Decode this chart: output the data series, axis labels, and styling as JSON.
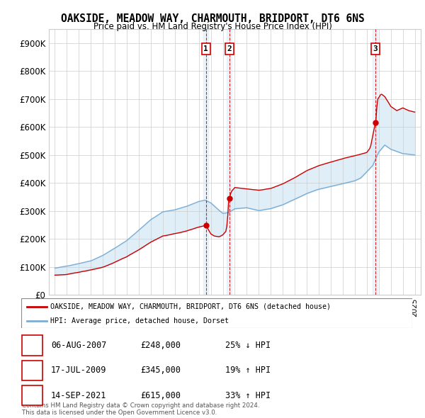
{
  "title": "OAKSIDE, MEADOW WAY, CHARMOUTH, BRIDPORT, DT6 6NS",
  "subtitle": "Price paid vs. HM Land Registry's House Price Index (HPI)",
  "legend_label_red": "OAKSIDE, MEADOW WAY, CHARMOUTH, BRIDPORT, DT6 6NS (detached house)",
  "legend_label_blue": "HPI: Average price, detached house, Dorset",
  "sale_points": [
    {
      "label": "1",
      "date_x": 2007.59,
      "price": 248000,
      "pct": "25%",
      "dir": "↓",
      "date_str": "06-AUG-2007"
    },
    {
      "label": "2",
      "date_x": 2009.54,
      "price": 345000,
      "pct": "19%",
      "dir": "↑",
      "date_str": "17-JUL-2009"
    },
    {
      "label": "3",
      "date_x": 2021.71,
      "price": 615000,
      "pct": "33%",
      "dir": "↑",
      "date_str": "14-SEP-2021"
    }
  ],
  "color_red": "#cc0000",
  "color_blue": "#7aadd4",
  "color_shading": "#d8eaf6",
  "background_color": "#ffffff",
  "grid_color": "#cccccc",
  "ylim": [
    0,
    950000
  ],
  "xlim_start": 1994.5,
  "xlim_end": 2025.5,
  "footer": "Contains HM Land Registry data © Crown copyright and database right 2024.\nThis data is licensed under the Open Government Licence v3.0.",
  "yticks": [
    0,
    100000,
    200000,
    300000,
    400000,
    500000,
    600000,
    700000,
    800000,
    900000
  ],
  "ytick_labels": [
    "£0",
    "£100K",
    "£200K",
    "£300K",
    "£400K",
    "£500K",
    "£600K",
    "£700K",
    "£800K",
    "£900K"
  ],
  "hpi_years": [
    1995,
    1995.083,
    1995.167,
    1995.25,
    1995.333,
    1995.417,
    1995.5,
    1995.583,
    1995.667,
    1995.75,
    1995.833,
    1995.917,
    1996,
    1996.083,
    1996.167,
    1996.25,
    1996.333,
    1996.417,
    1996.5,
    1996.583,
    1996.667,
    1996.75,
    1996.833,
    1996.917,
    1997,
    1997.083,
    1997.167,
    1997.25,
    1997.333,
    1997.417,
    1997.5,
    1997.583,
    1997.667,
    1997.75,
    1997.833,
    1997.917,
    1998,
    1998.083,
    1998.167,
    1998.25,
    1998.333,
    1998.417,
    1998.5,
    1998.583,
    1998.667,
    1998.75,
    1998.833,
    1998.917,
    1999,
    1999.083,
    1999.167,
    1999.25,
    1999.333,
    1999.417,
    1999.5,
    1999.583,
    1999.667,
    1999.75,
    1999.833,
    1999.917,
    2000,
    2000.083,
    2000.167,
    2000.25,
    2000.333,
    2000.417,
    2000.5,
    2000.583,
    2000.667,
    2000.75,
    2000.833,
    2000.917,
    2001,
    2001.083,
    2001.167,
    2001.25,
    2001.333,
    2001.417,
    2001.5,
    2001.583,
    2001.667,
    2001.75,
    2001.833,
    2001.917,
    2002,
    2002.083,
    2002.167,
    2002.25,
    2002.333,
    2002.417,
    2002.5,
    2002.583,
    2002.667,
    2002.75,
    2002.833,
    2002.917,
    2003,
    2003.083,
    2003.167,
    2003.25,
    2003.333,
    2003.417,
    2003.5,
    2003.583,
    2003.667,
    2003.75,
    2003.833,
    2003.917,
    2004,
    2004.083,
    2004.167,
    2004.25,
    2004.333,
    2004.417,
    2004.5,
    2004.583,
    2004.667,
    2004.75,
    2004.833,
    2004.917,
    2005,
    2005.083,
    2005.167,
    2005.25,
    2005.333,
    2005.417,
    2005.5,
    2005.583,
    2005.667,
    2005.75,
    2005.833,
    2005.917,
    2006,
    2006.083,
    2006.167,
    2006.25,
    2006.333,
    2006.417,
    2006.5,
    2006.583,
    2006.667,
    2006.75,
    2006.833,
    2006.917,
    2007,
    2007.083,
    2007.167,
    2007.25,
    2007.333,
    2007.417,
    2007.5,
    2007.583,
    2007.667,
    2007.75,
    2007.833,
    2007.917,
    2008,
    2008.083,
    2008.167,
    2008.25,
    2008.333,
    2008.417,
    2008.5,
    2008.583,
    2008.667,
    2008.75,
    2008.833,
    2008.917,
    2009,
    2009.083,
    2009.167,
    2009.25,
    2009.333,
    2009.417,
    2009.5,
    2009.583,
    2009.667,
    2009.75,
    2009.833,
    2009.917,
    2010,
    2010.083,
    2010.167,
    2010.25,
    2010.333,
    2010.417,
    2010.5,
    2010.583,
    2010.667,
    2010.75,
    2010.833,
    2010.917,
    2011,
    2011.083,
    2011.167,
    2011.25,
    2011.333,
    2011.417,
    2011.5,
    2011.583,
    2011.667,
    2011.75,
    2011.833,
    2011.917,
    2012,
    2012.083,
    2012.167,
    2012.25,
    2012.333,
    2012.417,
    2012.5,
    2012.583,
    2012.667,
    2012.75,
    2012.833,
    2012.917,
    2013,
    2013.083,
    2013.167,
    2013.25,
    2013.333,
    2013.417,
    2013.5,
    2013.583,
    2013.667,
    2013.75,
    2013.833,
    2013.917,
    2014,
    2014.083,
    2014.167,
    2014.25,
    2014.333,
    2014.417,
    2014.5,
    2014.583,
    2014.667,
    2014.75,
    2014.833,
    2014.917,
    2015,
    2015.083,
    2015.167,
    2015.25,
    2015.333,
    2015.417,
    2015.5,
    2015.583,
    2015.667,
    2015.75,
    2015.833,
    2015.917,
    2016,
    2016.083,
    2016.167,
    2016.25,
    2016.333,
    2016.417,
    2016.5,
    2016.583,
    2016.667,
    2016.75,
    2016.833,
    2016.917,
    2017,
    2017.083,
    2017.167,
    2017.25,
    2017.333,
    2017.417,
    2017.5,
    2017.583,
    2017.667,
    2017.75,
    2017.833,
    2017.917,
    2018,
    2018.083,
    2018.167,
    2018.25,
    2018.333,
    2018.417,
    2018.5,
    2018.583,
    2018.667,
    2018.75,
    2018.833,
    2018.917,
    2019,
    2019.083,
    2019.167,
    2019.25,
    2019.333,
    2019.417,
    2019.5,
    2019.583,
    2019.667,
    2019.75,
    2019.833,
    2019.917,
    2020,
    2020.083,
    2020.167,
    2020.25,
    2020.333,
    2020.417,
    2020.5,
    2020.583,
    2020.667,
    2020.75,
    2020.833,
    2020.917,
    2021,
    2021.083,
    2021.167,
    2021.25,
    2021.333,
    2021.417,
    2021.5,
    2021.583,
    2021.667,
    2021.75,
    2021.833,
    2021.917,
    2022,
    2022.083,
    2022.167,
    2022.25,
    2022.333,
    2022.417,
    2022.5,
    2022.583,
    2022.667,
    2022.75,
    2022.833,
    2022.917,
    2023,
    2023.083,
    2023.167,
    2023.25,
    2023.333,
    2023.417,
    2023.5,
    2023.583,
    2023.667,
    2023.75,
    2023.833,
    2023.917,
    2024,
    2024.083,
    2024.167,
    2024.25,
    2024.333,
    2024.417,
    2024.5,
    2024.583,
    2024.667,
    2024.75,
    2024.833,
    2024.917,
    2025
  ]
}
